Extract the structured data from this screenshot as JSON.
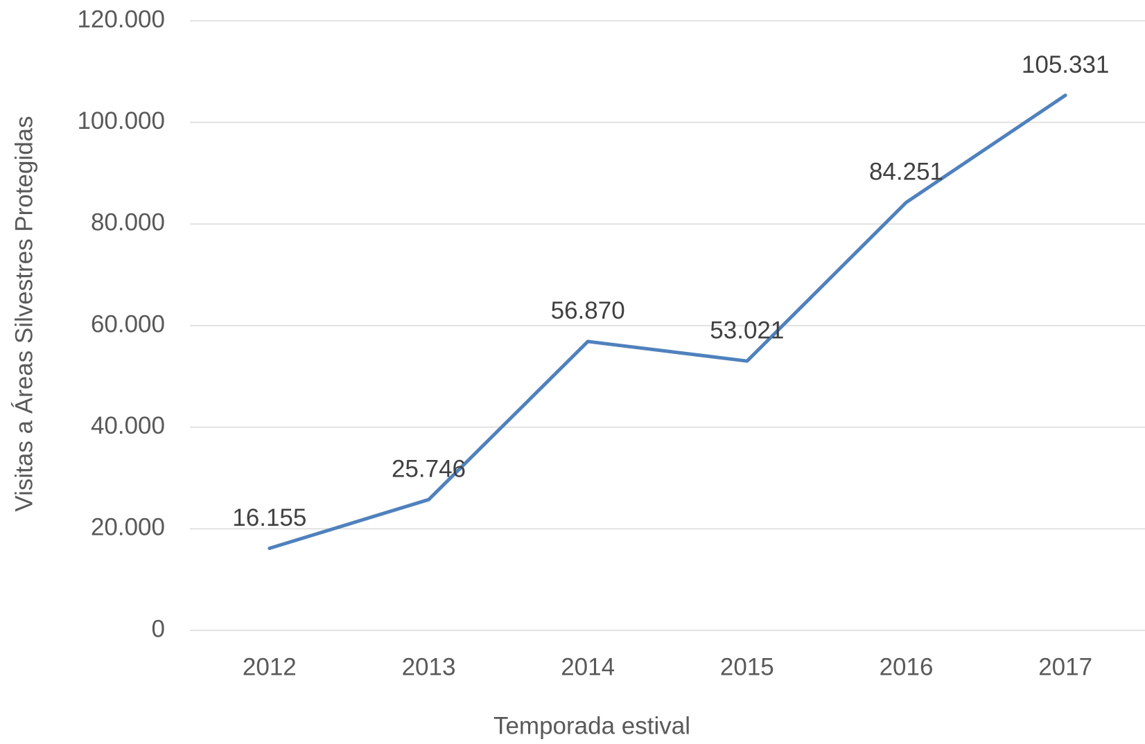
{
  "chart_data": {
    "type": "line",
    "x_label": "Temporada estival",
    "y_label": "Visitas a Áreas Silvestres Protegidas",
    "categories": [
      "2012",
      "2013",
      "2014",
      "2015",
      "2016",
      "2017"
    ],
    "series": [
      {
        "name": "Visitas",
        "color": "#4f81bd",
        "values": [
          16155,
          25746,
          56870,
          53021,
          84251,
          105331
        ],
        "value_labels": [
          "16.155",
          "25.746",
          "56.870",
          "53.021",
          "84.251",
          "105.331"
        ]
      }
    ],
    "ylim": [
      0,
      120000
    ],
    "yticks": [
      0,
      {
        "value": 20000,
        "label": "20.000"
      },
      {
        "value": 40000,
        "label": "40.000"
      },
      {
        "value": 60000,
        "label": "60.000"
      },
      {
        "value": 80000,
        "label": "80.000"
      },
      {
        "value": 100000,
        "label": "100.000"
      },
      {
        "value": 120000,
        "label": "120.000"
      }
    ],
    "grid": true
  }
}
